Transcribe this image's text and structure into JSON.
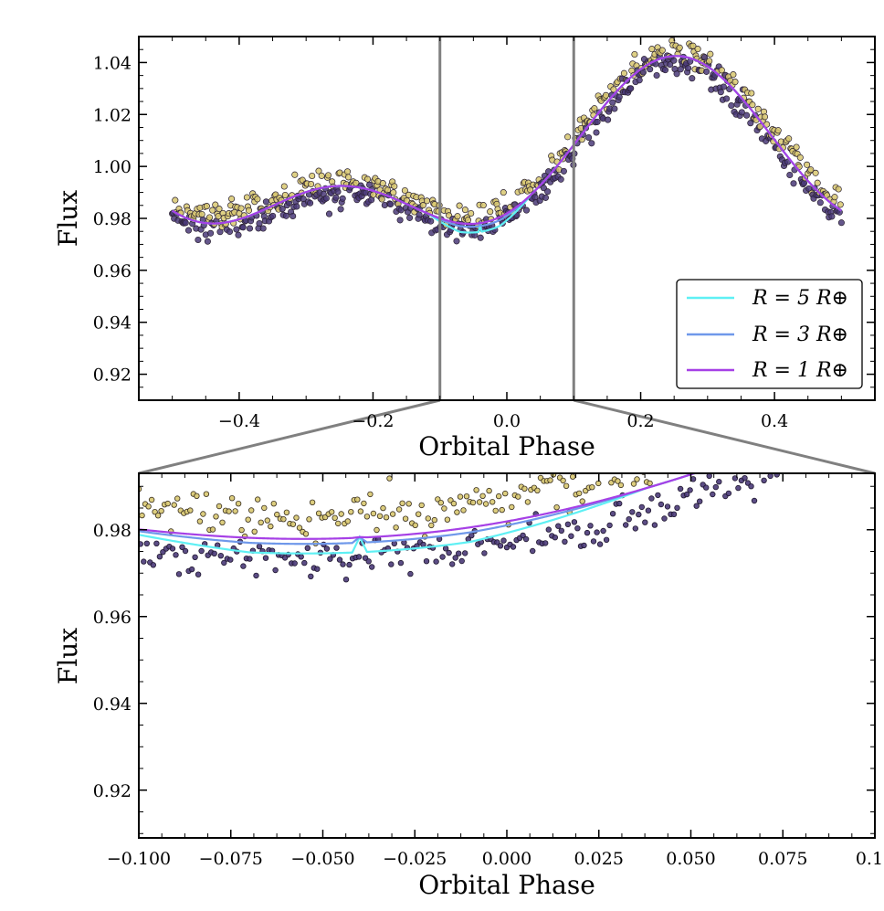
{
  "chart_data": [
    {
      "type": "scatter",
      "panel": "full",
      "xlabel": "Orbital Phase",
      "ylabel": "Flux",
      "xlim": [
        -0.55,
        0.55
      ],
      "ylim": [
        0.91,
        1.05
      ],
      "xticks": [
        -0.4,
        -0.2,
        0.0,
        0.2,
        0.4
      ],
      "xtick_labels": [
        "−0.4",
        "−0.2",
        "0.0",
        "0.2",
        "0.4"
      ],
      "yticks": [
        0.92,
        0.94,
        0.96,
        0.98,
        1.0,
        1.02,
        1.04
      ],
      "ytick_labels": [
        "0.92",
        "0.94",
        "0.96",
        "0.98",
        "1.00",
        "1.02",
        "1.04"
      ],
      "zoom_window": [
        -0.1,
        0.1
      ],
      "model": {
        "description": "phase curve: 1 + 0.025*sin(2*pi*(phase - 0.003)) - 0.0175*cos(4*pi*(phase - 0.003))",
        "transit_center": -0.04
      },
      "scatter_series": [
        {
          "name": "observations (yellow)",
          "color": "#d8c870",
          "offset": 0.004
        },
        {
          "name": "observations (purple)",
          "color": "#4a3a78",
          "offset": -0.004
        }
      ],
      "legend": {
        "position": "lower-right",
        "entries": [
          {
            "label": "R = 5 R⊕",
            "color": "#5ff0f4",
            "depth": 0.0035
          },
          {
            "label": "R = 3 R⊕",
            "color": "#6f98ea",
            "depth": 0.0013
          },
          {
            "label": "R = 1 R⊕",
            "color": "#a640e6",
            "depth": 0.00015
          }
        ]
      }
    },
    {
      "type": "scatter",
      "panel": "zoom",
      "xlabel": "Orbital Phase",
      "ylabel": "Flux",
      "xlim": [
        -0.1,
        0.1
      ],
      "ylim": [
        0.909,
        0.993
      ],
      "xticks": [
        -0.1,
        -0.075,
        -0.05,
        -0.025,
        0.0,
        0.025,
        0.05,
        0.075,
        0.1
      ],
      "xtick_labels": [
        "−0.100",
        "−0.075",
        "−0.050",
        "−0.025",
        "0.000",
        "0.025",
        "0.050",
        "0.075",
        "0.10"
      ],
      "yticks": [
        0.92,
        0.94,
        0.96,
        0.98
      ],
      "ytick_labels": [
        "0.92",
        "0.94",
        "0.96",
        "0.98"
      ]
    }
  ]
}
